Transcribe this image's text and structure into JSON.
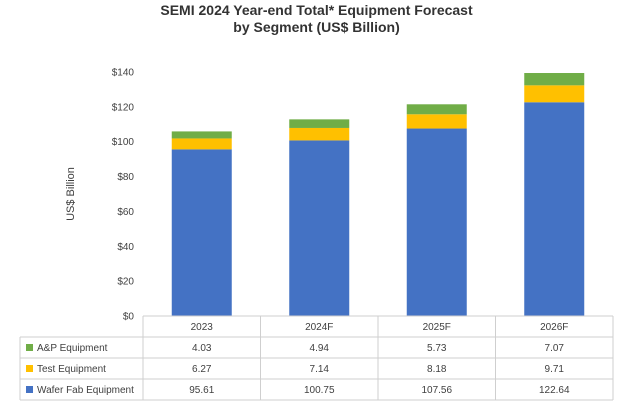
{
  "chart_data": {
    "type": "bar",
    "stacked": true,
    "title": "SEMI 2024 Year-end Total* Equipment Forecast",
    "subtitle": "by Segment (US$ Billion)",
    "ylabel": "US$ Billion",
    "xlabel": "",
    "ylim": [
      0,
      140
    ],
    "yticks": [
      0,
      20,
      40,
      60,
      80,
      100,
      120,
      140
    ],
    "ytick_labels": [
      "$0",
      "$20",
      "$40",
      "$60",
      "$80",
      "$100",
      "$120",
      "$140"
    ],
    "grid": false,
    "legend_placement": "data table rows below chart",
    "categories": [
      "2023",
      "2024F",
      "2025F",
      "2026F"
    ],
    "series": [
      {
        "name": "Wafer Fab Equipment",
        "color": "#4472c4",
        "values": [
          95.61,
          100.75,
          107.56,
          122.64
        ],
        "labels": [
          "95.61",
          "100.75",
          "107.56",
          "122.64"
        ]
      },
      {
        "name": "Test Equipment",
        "color": "#ffc000",
        "values": [
          6.27,
          7.14,
          8.18,
          9.71
        ],
        "labels": [
          "6.27",
          "7.14",
          "8.18",
          "9.71"
        ]
      },
      {
        "name": "A&P Equipment",
        "color": "#70ad47",
        "values": [
          4.03,
          4.94,
          5.73,
          7.07
        ],
        "labels": [
          "4.03",
          "4.94",
          "5.73",
          "7.07"
        ]
      }
    ],
    "table_row_order": [
      "A&P Equipment",
      "Test Equipment",
      "Wafer Fab Equipment"
    ]
  }
}
